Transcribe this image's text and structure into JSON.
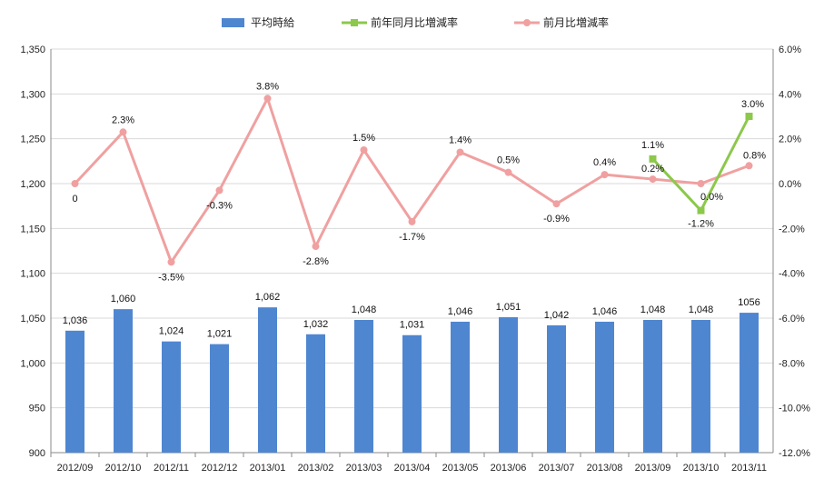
{
  "chart_data": {
    "type": "bar+line",
    "categories": [
      "2012/09",
      "2012/10",
      "2012/11",
      "2012/12",
      "2013/01",
      "2013/02",
      "2013/03",
      "2013/04",
      "2013/05",
      "2013/06",
      "2013/07",
      "2013/08",
      "2013/09",
      "2013/10",
      "2013/11"
    ],
    "series": [
      {
        "name": "平均時給",
        "type": "bar",
        "axis": "left",
        "color": "#4f86d0",
        "values": [
          1036,
          1060,
          1024,
          1021,
          1062,
          1032,
          1048,
          1031,
          1046,
          1051,
          1042,
          1046,
          1048,
          1048,
          1056
        ],
        "labels": [
          "1,036",
          "1,060",
          "1,024",
          "1,021",
          "1,062",
          "1,032",
          "1,048",
          "1,031",
          "1,046",
          "1,051",
          "1,042",
          "1,046",
          "1,048",
          "1,048",
          "1056"
        ]
      },
      {
        "name": "前年同月比増減率",
        "type": "line",
        "axis": "right",
        "color": "#8cc84b",
        "values": [
          null,
          null,
          null,
          null,
          null,
          null,
          null,
          null,
          null,
          null,
          null,
          null,
          1.1,
          -1.2,
          3.0
        ],
        "labels": [
          "",
          "",
          "",
          "",
          "",
          "",
          "",
          "",
          "",
          "",
          "",
          "",
          "1.1%",
          "-1.2%",
          "3.0%"
        ]
      },
      {
        "name": "前月比増減率",
        "type": "line",
        "axis": "right",
        "color": "#f0a0a0",
        "values": [
          0,
          2.3,
          -3.5,
          -0.3,
          3.8,
          -2.8,
          1.5,
          -1.7,
          1.4,
          0.5,
          -0.9,
          0.4,
          0.2,
          0.0,
          0.8
        ],
        "labels": [
          "0",
          "2.3%",
          "-3.5%",
          "-0.3%",
          "3.8%",
          "-2.8%",
          "1.5%",
          "-1.7%",
          "1.4%",
          "0.5%",
          "-0.9%",
          "0.4%",
          "0.2%",
          "0.0%",
          "0.8%"
        ]
      }
    ],
    "left_axis": {
      "ylim": [
        900,
        1350
      ],
      "ticks": [
        900,
        950,
        1000,
        1050,
        1100,
        1150,
        1200,
        1250,
        1300,
        1350
      ],
      "tick_labels": [
        "900",
        "950",
        "1,000",
        "1,050",
        "1,100",
        "1,150",
        "1,200",
        "1,250",
        "1,300",
        "1,350"
      ]
    },
    "right_axis": {
      "ylim": [
        -12,
        6
      ],
      "ticks": [
        -12,
        -10,
        -8,
        -6,
        -4,
        -2,
        0,
        2,
        4,
        6
      ],
      "tick_labels": [
        "-12.0%",
        "-10.0%",
        "-8.0%",
        "-6.0%",
        "-4.0%",
        "-2.0%",
        "0.0%",
        "2.0%",
        "4.0%",
        "6.0%"
      ]
    },
    "grid": "horizontal",
    "legend_position": "top"
  }
}
